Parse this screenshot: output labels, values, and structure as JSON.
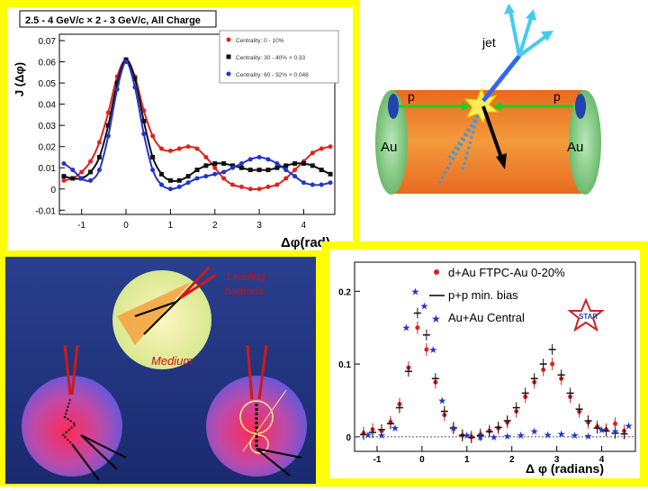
{
  "top_left_plot": {
    "title": "2.5 - 4 GeV/c × 2 - 3 GeV/c,  All Charge",
    "ylabel": "J (Δφ)",
    "xlabel": "Δφ(rad)",
    "yticks": [
      "0.07",
      "0.06",
      "0.05",
      "0.04",
      "0.03",
      "0.02",
      "0.01",
      "0",
      "-0.01"
    ],
    "xticks": [
      "-1",
      "0",
      "1",
      "2",
      "3",
      "4"
    ],
    "legend": [
      "Centrality: 0 - 10%",
      "Centrality: 30 - 40% × 0.33",
      "Centrality: 60 - 92% × 0.048"
    ],
    "colors": {
      "red": "#dd2222",
      "black": "#111111",
      "blue": "#2233cc"
    }
  },
  "collision_diagram": {
    "jet_label": "jet",
    "p_left": "p",
    "p_right": "p",
    "au_left": "Au",
    "au_right": "Au"
  },
  "medium_diagram": {
    "leading_hadrons": "Leading\nhadrons",
    "medium_label": "Medium"
  },
  "bottom_right_plot": {
    "yticks": [
      "0.2",
      "0.1",
      "0"
    ],
    "xticks": [
      "-1",
      "0",
      "1",
      "2",
      "3",
      "4"
    ],
    "xlabel": "Δ φ (radians)",
    "legend": [
      "d+Au FTPC-Au 0-20%",
      "p+p min. bias",
      "Au+Au Central"
    ],
    "logo": "STAR"
  },
  "chart_data": [
    {
      "type": "scatter",
      "title": "2.5 - 4 GeV/c × 2 - 3 GeV/c,  All Charge",
      "xlabel": "Δφ(rad)",
      "ylabel": "J (Δφ)",
      "xlim": [
        -1.5,
        4.7
      ],
      "ylim": [
        -0.012,
        0.073
      ],
      "series": [
        {
          "name": "Centrality: 0 - 10%",
          "color": "#dd2222",
          "x": [
            -1.4,
            -1.2,
            -1.0,
            -0.8,
            -0.6,
            -0.4,
            -0.2,
            0.0,
            0.2,
            0.4,
            0.6,
            0.8,
            1.0,
            1.2,
            1.4,
            1.6,
            1.8,
            2.0,
            2.2,
            2.4,
            2.6,
            2.8,
            3.0,
            3.2,
            3.4,
            3.6,
            3.8,
            4.0,
            4.2,
            4.4,
            4.6
          ],
          "y": [
            0.004,
            0.005,
            0.008,
            0.013,
            0.022,
            0.036,
            0.053,
            0.061,
            0.053,
            0.037,
            0.025,
            0.019,
            0.018,
            0.019,
            0.02,
            0.019,
            0.015,
            0.01,
            0.005,
            0.002,
            0.001,
            0.0,
            0.0,
            0.001,
            0.002,
            0.005,
            0.009,
            0.013,
            0.017,
            0.019,
            0.02
          ]
        },
        {
          "name": "Centrality: 30 - 40% × 0.33",
          "color": "#111111",
          "x": [
            -1.4,
            -1.2,
            -1.0,
            -0.8,
            -0.6,
            -0.4,
            -0.2,
            0.0,
            0.2,
            0.4,
            0.6,
            0.8,
            1.0,
            1.2,
            1.4,
            1.6,
            1.8,
            2.0,
            2.2,
            2.4,
            2.6,
            2.8,
            3.0,
            3.2,
            3.4,
            3.6,
            3.8,
            4.0,
            4.2,
            4.4,
            4.6
          ],
          "y": [
            0.006,
            0.005,
            0.005,
            0.008,
            0.015,
            0.03,
            0.05,
            0.061,
            0.052,
            0.032,
            0.015,
            0.007,
            0.004,
            0.004,
            0.006,
            0.009,
            0.011,
            0.012,
            0.012,
            0.011,
            0.01,
            0.009,
            0.009,
            0.009,
            0.01,
            0.011,
            0.012,
            0.012,
            0.011,
            0.009,
            0.007
          ]
        },
        {
          "name": "Centrality: 60 - 92% × 0.048",
          "color": "#2233cc",
          "x": [
            -1.4,
            -1.2,
            -1.0,
            -0.8,
            -0.6,
            -0.4,
            -0.2,
            0.0,
            0.2,
            0.4,
            0.6,
            0.8,
            1.0,
            1.2,
            1.4,
            1.6,
            1.8,
            2.0,
            2.2,
            2.4,
            2.6,
            2.8,
            3.0,
            3.2,
            3.4,
            3.6,
            3.8,
            4.0,
            4.2,
            4.4,
            4.6
          ],
          "y": [
            0.012,
            0.009,
            0.005,
            0.004,
            0.009,
            0.025,
            0.047,
            0.06,
            0.048,
            0.026,
            0.009,
            0.002,
            0.0,
            0.001,
            0.003,
            0.005,
            0.006,
            0.007,
            0.008,
            0.01,
            0.012,
            0.014,
            0.015,
            0.014,
            0.012,
            0.009,
            0.006,
            0.003,
            0.002,
            0.002,
            0.003
          ]
        }
      ]
    },
    {
      "type": "scatter",
      "xlabel": "Δ φ (radians)",
      "xlim": [
        -1.5,
        4.75
      ],
      "ylim": [
        -0.02,
        0.24
      ],
      "series": [
        {
          "name": "d+Au FTPC-Au 0-20%",
          "color": "#dd2222",
          "marker": "circle",
          "x": [
            -1.3,
            -1.1,
            -0.9,
            -0.7,
            -0.5,
            -0.3,
            -0.1,
            0.1,
            0.3,
            0.5,
            0.7,
            0.9,
            1.1,
            1.3,
            1.5,
            1.7,
            1.9,
            2.1,
            2.3,
            2.5,
            2.7,
            2.9,
            3.1,
            3.3,
            3.5,
            3.7,
            3.9,
            4.1,
            4.3,
            4.5
          ],
          "y": [
            0.005,
            0.01,
            0.008,
            0.02,
            0.045,
            0.095,
            0.15,
            0.12,
            0.075,
            0.03,
            0.012,
            0.002,
            0.0,
            0.003,
            0.008,
            0.012,
            0.02,
            0.035,
            0.055,
            0.075,
            0.092,
            0.1,
            0.08,
            0.055,
            0.035,
            0.02,
            0.014,
            0.01,
            0.018,
            0.008
          ]
        },
        {
          "name": "p+p min. bias",
          "color": "#111111",
          "marker": "line",
          "x": [
            -1.3,
            -1.1,
            -0.9,
            -0.7,
            -0.5,
            -0.3,
            -0.1,
            0.1,
            0.3,
            0.5,
            0.7,
            0.9,
            1.1,
            1.3,
            1.5,
            1.7,
            1.9,
            2.1,
            2.3,
            2.5,
            2.7,
            2.9,
            3.1,
            3.3,
            3.5,
            3.7,
            3.9,
            4.1,
            4.3,
            4.5
          ],
          "y": [
            0.003,
            0.006,
            0.01,
            0.018,
            0.04,
            0.09,
            0.17,
            0.14,
            0.08,
            0.035,
            0.012,
            0.002,
            -0.001,
            0.002,
            0.007,
            0.013,
            0.022,
            0.04,
            0.06,
            0.08,
            0.1,
            0.12,
            0.085,
            0.06,
            0.038,
            0.022,
            0.012,
            0.008,
            0.005,
            0.004
          ]
        },
        {
          "name": "Au+Au Central",
          "color": "#2233cc",
          "marker": "star",
          "x": [
            -1.2,
            -0.9,
            -0.6,
            -0.35,
            -0.15,
            0.05,
            0.25,
            0.45,
            0.7,
            1.0,
            1.3,
            1.6,
            1.9,
            2.2,
            2.5,
            2.8,
            3.1,
            3.4,
            3.7,
            4.0,
            4.3,
            4.6
          ],
          "y": [
            0.003,
            0.002,
            0.012,
            0.15,
            0.2,
            0.18,
            0.12,
            0.05,
            0.012,
            0.002,
            0.0,
            0.0,
            0.001,
            0.002,
            0.008,
            0.003,
            0.004,
            0.002,
            0.001,
            0.01,
            0.008,
            0.015
          ]
        }
      ]
    }
  ]
}
